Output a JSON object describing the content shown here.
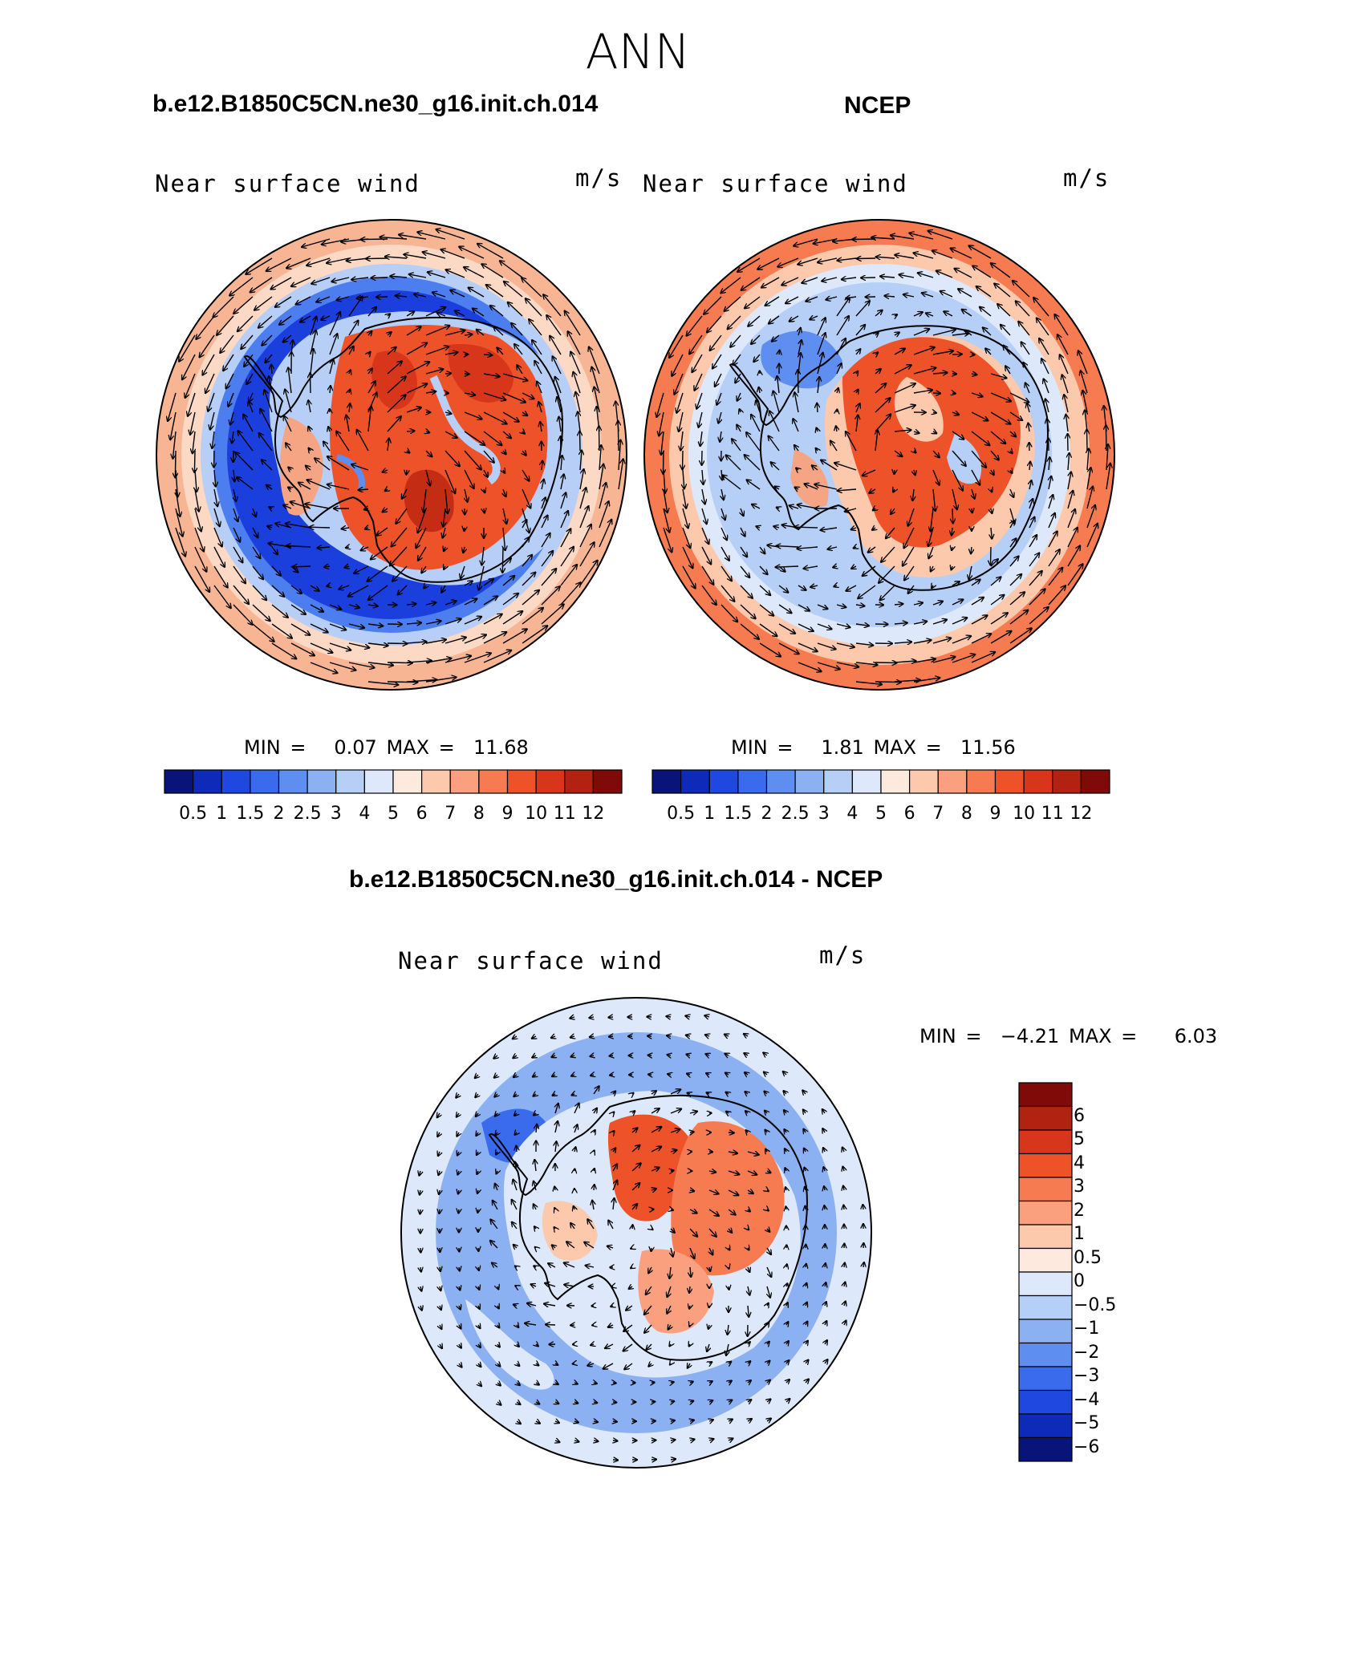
{
  "season": "ANN",
  "colors": {
    "abs_scale": [
      "#09147a",
      "#0d2bb8",
      "#1f48e0",
      "#3a6bec",
      "#5e8ef0",
      "#8cb1f2",
      "#b6cff6",
      "#dde9fa",
      "#fde9dd",
      "#fcc9ad",
      "#faa07e",
      "#f67b50",
      "#ee5228",
      "#d8361b",
      "#b12210",
      "#7f0a07"
    ],
    "diff_scale": [
      "#09147a",
      "#0d2bb8",
      "#1f48e0",
      "#3a6bec",
      "#5e8ef0",
      "#8cb1f2",
      "#b6cff6",
      "#dde9fa",
      "#fde9dd",
      "#fcc9ad",
      "#faa07e",
      "#f67b50",
      "#ee5228",
      "#d8361b",
      "#b12210",
      "#7f0a07"
    ]
  },
  "panels": {
    "model": {
      "title": "b.e12.B1850C5CN.ne30_g16.init.ch.014",
      "field_label": "Near surface wind",
      "units": "m/s",
      "min_label": "MIN =",
      "min_value": "0.07",
      "max_label": "MAX =",
      "max_value": "11.68",
      "colorbar_ticks": [
        "0.5",
        "1",
        "1.5",
        "2",
        "2.5",
        "3",
        "4",
        "5",
        "6",
        "7",
        "8",
        "9",
        "10",
        "11",
        "12"
      ]
    },
    "obs": {
      "title": "NCEP",
      "field_label": "Near surface wind",
      "units": "m/s",
      "min_label": "MIN =",
      "min_value": "1.81",
      "max_label": "MAX =",
      "max_value": "11.56",
      "colorbar_ticks": [
        "0.5",
        "1",
        "1.5",
        "2",
        "2.5",
        "3",
        "4",
        "5",
        "6",
        "7",
        "8",
        "9",
        "10",
        "11",
        "12"
      ]
    },
    "diff": {
      "title": "b.e12.B1850C5CN.ne30_g16.init.ch.014 - NCEP",
      "field_label": "Near surface wind",
      "units": "m/s",
      "min_label": "MIN =",
      "min_value": "−4.21",
      "max_label": "MAX =",
      "max_value": "6.03",
      "colorbar_ticks": [
        "6",
        "5",
        "4",
        "3",
        "2",
        "1",
        "0.5",
        "0",
        "−0.5",
        "−1",
        "−2",
        "−3",
        "−4",
        "−5",
        "−6"
      ]
    }
  }
}
